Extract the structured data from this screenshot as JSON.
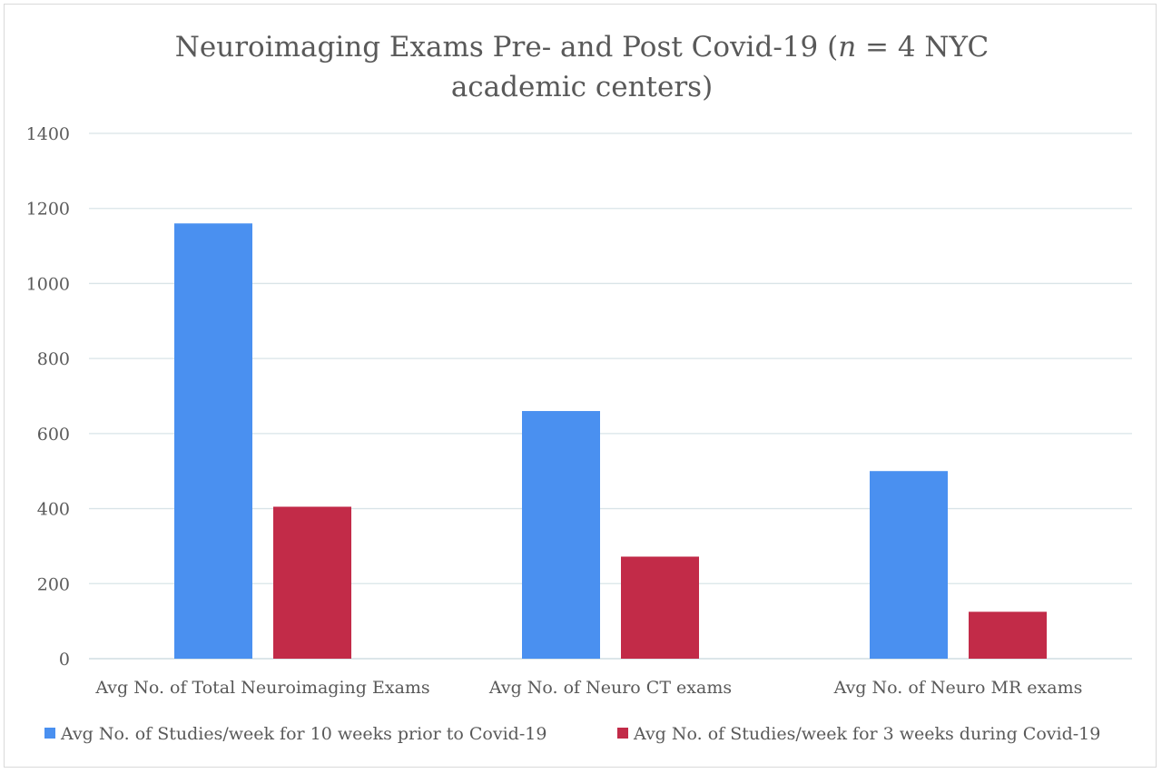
{
  "chart_data": {
    "type": "bar",
    "title_line1_prefix": "Neuroimaging Exams Pre- and Post Covid-19 (",
    "title_line1_italic": "n",
    "title_line1_suffix": " = 4 NYC",
    "title_line2": "academic centers)",
    "categories": [
      "Avg No. of Total Neuroimaging Exams",
      "Avg No. of Neuro CT exams",
      "Avg No. of Neuro MR exams"
    ],
    "series": [
      {
        "name": "Avg No. of Studies/week for 10 weeks prior to Covid-19",
        "color": "#4a90f0",
        "values": [
          1160,
          660,
          500
        ]
      },
      {
        "name": "Avg No. of Studies/week for 3 weeks during Covid-19",
        "color": "#c22b48",
        "values": [
          405,
          272,
          125
        ]
      }
    ],
    "y_ticks": [
      "0",
      "200",
      "400",
      "600",
      "800",
      "1000",
      "1200",
      "1400"
    ],
    "ylim": [
      0,
      1400
    ],
    "grid": true,
    "legend_position": "bottom"
  }
}
